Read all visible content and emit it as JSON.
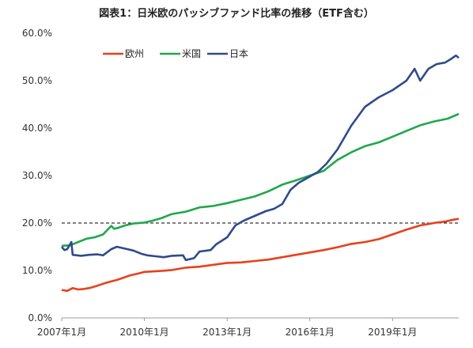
{
  "chart_data": {
    "type": "line",
    "title": "図表1：日米欧のパッシブファンド比率の推移（ETF含む）",
    "xlabel": "",
    "ylabel": "",
    "ylim": [
      0,
      60
    ],
    "y_ticks": [
      "0.0%",
      "10.0%",
      "20.0%",
      "30.0%",
      "40.0%",
      "50.0%",
      "60.0%"
    ],
    "x_ticks": [
      "2007年1月",
      "2010年1月",
      "2013年1月",
      "2016年1月",
      "2019年1月"
    ],
    "x_tick_values": [
      2007.0,
      2010.0,
      2013.0,
      2016.0,
      2019.0
    ],
    "xlim": [
      2007.0,
      2021.4
    ],
    "reference_line": {
      "y": 20,
      "style": "dashed",
      "color": "#000000"
    },
    "grid": false,
    "legend_position": "top-left",
    "series": [
      {
        "name": "欧州",
        "color": "#e8401c",
        "points": [
          [
            2007.0,
            5.9
          ],
          [
            2007.2,
            5.7
          ],
          [
            2007.4,
            6.3
          ],
          [
            2007.6,
            6.0
          ],
          [
            2007.8,
            6.1
          ],
          [
            2008.0,
            6.3
          ],
          [
            2008.3,
            6.8
          ],
          [
            2008.5,
            7.2
          ],
          [
            2008.8,
            7.7
          ],
          [
            2009.0,
            8.0
          ],
          [
            2009.3,
            8.6
          ],
          [
            2009.5,
            9.0
          ],
          [
            2009.8,
            9.4
          ],
          [
            2010.0,
            9.7
          ],
          [
            2010.3,
            9.8
          ],
          [
            2010.6,
            9.9
          ],
          [
            2011.0,
            10.1
          ],
          [
            2011.5,
            10.6
          ],
          [
            2012.0,
            10.8
          ],
          [
            2012.5,
            11.2
          ],
          [
            2013.0,
            11.6
          ],
          [
            2013.5,
            11.7
          ],
          [
            2014.0,
            12.0
          ],
          [
            2014.5,
            12.3
          ],
          [
            2015.0,
            12.8
          ],
          [
            2015.5,
            13.3
          ],
          [
            2016.0,
            13.8
          ],
          [
            2016.5,
            14.3
          ],
          [
            2017.0,
            14.9
          ],
          [
            2017.5,
            15.6
          ],
          [
            2018.0,
            16.0
          ],
          [
            2018.5,
            16.6
          ],
          [
            2019.0,
            17.6
          ],
          [
            2019.5,
            18.6
          ],
          [
            2020.0,
            19.5
          ],
          [
            2020.3,
            19.8
          ],
          [
            2020.6,
            20.1
          ],
          [
            2020.9,
            20.3
          ],
          [
            2021.2,
            20.7
          ],
          [
            2021.4,
            20.9
          ]
        ]
      },
      {
        "name": "米国",
        "color": "#1ea84a",
        "points": [
          [
            2007.0,
            15.2
          ],
          [
            2007.3,
            15.3
          ],
          [
            2007.6,
            16.0
          ],
          [
            2007.9,
            16.7
          ],
          [
            2008.2,
            17.0
          ],
          [
            2008.5,
            17.6
          ],
          [
            2008.8,
            19.4
          ],
          [
            2008.9,
            18.8
          ],
          [
            2009.0,
            18.9
          ],
          [
            2009.3,
            19.5
          ],
          [
            2009.6,
            19.9
          ],
          [
            2010.0,
            20.1
          ],
          [
            2010.3,
            20.5
          ],
          [
            2010.6,
            21.0
          ],
          [
            2011.0,
            21.9
          ],
          [
            2011.5,
            22.4
          ],
          [
            2012.0,
            23.3
          ],
          [
            2012.5,
            23.6
          ],
          [
            2013.0,
            24.2
          ],
          [
            2013.5,
            24.9
          ],
          [
            2014.0,
            25.6
          ],
          [
            2014.5,
            26.7
          ],
          [
            2015.0,
            28.1
          ],
          [
            2015.5,
            29.0
          ],
          [
            2016.0,
            30.0
          ],
          [
            2016.5,
            31.0
          ],
          [
            2017.0,
            33.3
          ],
          [
            2017.5,
            34.9
          ],
          [
            2018.0,
            36.2
          ],
          [
            2018.5,
            37.0
          ],
          [
            2019.0,
            38.2
          ],
          [
            2019.5,
            39.4
          ],
          [
            2020.0,
            40.6
          ],
          [
            2020.5,
            41.4
          ],
          [
            2021.0,
            42.0
          ],
          [
            2021.4,
            43.0
          ]
        ]
      },
      {
        "name": "日本",
        "color": "#2f4b8c",
        "points": [
          [
            2007.0,
            15.0
          ],
          [
            2007.1,
            14.3
          ],
          [
            2007.2,
            14.5
          ],
          [
            2007.35,
            16.0
          ],
          [
            2007.4,
            13.3
          ],
          [
            2007.7,
            13.1
          ],
          [
            2008.0,
            13.3
          ],
          [
            2008.3,
            13.4
          ],
          [
            2008.5,
            13.2
          ],
          [
            2008.8,
            14.5
          ],
          [
            2009.0,
            15.0
          ],
          [
            2009.3,
            14.6
          ],
          [
            2009.6,
            14.2
          ],
          [
            2009.9,
            13.5
          ],
          [
            2010.1,
            13.2
          ],
          [
            2010.4,
            13.0
          ],
          [
            2010.7,
            12.8
          ],
          [
            2011.0,
            13.1
          ],
          [
            2011.4,
            13.2
          ],
          [
            2011.5,
            12.2
          ],
          [
            2011.8,
            12.6
          ],
          [
            2012.0,
            14.0
          ],
          [
            2012.4,
            14.3
          ],
          [
            2012.6,
            15.5
          ],
          [
            2013.0,
            17.0
          ],
          [
            2013.3,
            19.5
          ],
          [
            2013.6,
            20.5
          ],
          [
            2014.0,
            21.5
          ],
          [
            2014.4,
            22.5
          ],
          [
            2014.7,
            23.0
          ],
          [
            2015.0,
            24.0
          ],
          [
            2015.3,
            27.0
          ],
          [
            2015.6,
            28.5
          ],
          [
            2016.0,
            29.8
          ],
          [
            2016.3,
            30.8
          ],
          [
            2016.6,
            32.5
          ],
          [
            2017.0,
            35.5
          ],
          [
            2017.5,
            40.5
          ],
          [
            2018.0,
            44.5
          ],
          [
            2018.5,
            46.5
          ],
          [
            2019.0,
            48.0
          ],
          [
            2019.5,
            50.0
          ],
          [
            2019.8,
            52.5
          ],
          [
            2020.0,
            50.0
          ],
          [
            2020.3,
            52.5
          ],
          [
            2020.6,
            53.5
          ],
          [
            2020.9,
            53.8
          ],
          [
            2021.1,
            54.5
          ],
          [
            2021.3,
            55.3
          ],
          [
            2021.4,
            54.8
          ]
        ]
      }
    ]
  }
}
